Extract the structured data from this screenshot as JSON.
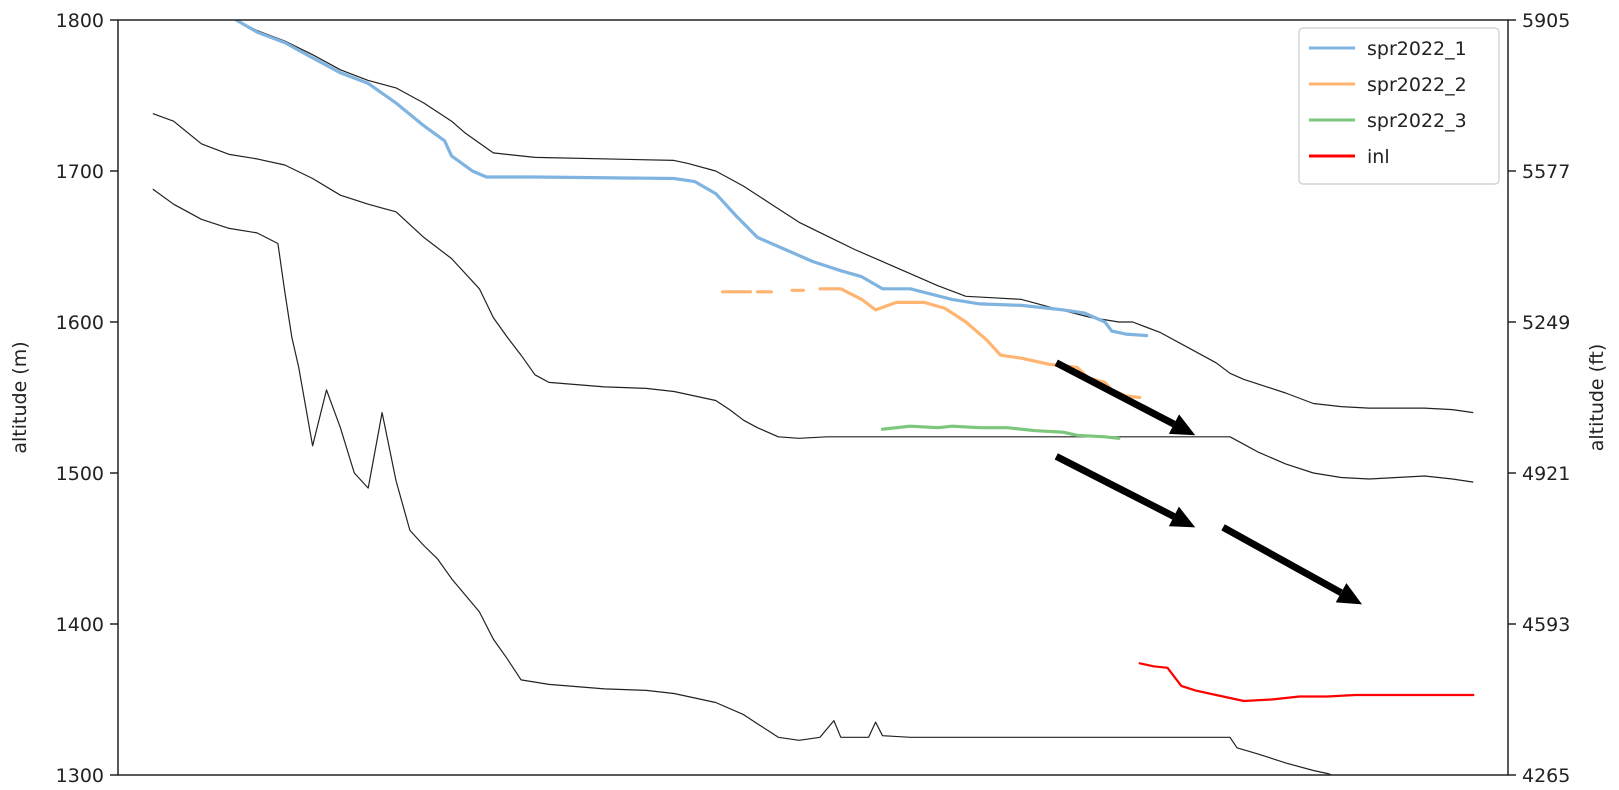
{
  "chart_data": {
    "type": "line",
    "title": "",
    "xlabel": "",
    "ylabel": "altitude (m)",
    "ylabel_right": "altitude (ft)",
    "ylim": [
      1300,
      1800
    ],
    "yticks": [
      1300,
      1400,
      1500,
      1600,
      1700,
      1800
    ],
    "ytick_labels": [
      "1300",
      "1400",
      "1500",
      "1600",
      "1700",
      "1800"
    ],
    "right_ylim": [
      4265,
      5905
    ],
    "right_ticks": [
      4265,
      4593,
      4921,
      5249,
      5577,
      5905
    ],
    "right_tick_labels": [
      "4265",
      "4593",
      "4921",
      "5249",
      "5577",
      "5905"
    ],
    "xlim": [
      0,
      100
    ],
    "x_ticks_shown": false,
    "grid": false,
    "legend_position": "top-right",
    "series": [
      {
        "name": "spr2022_1",
        "color": "#7fb3e0",
        "points": [
          [
            8.5,
            1800
          ],
          [
            10,
            1792
          ],
          [
            12,
            1785
          ],
          [
            14,
            1775
          ],
          [
            16,
            1765
          ],
          [
            18,
            1758
          ],
          [
            20,
            1745
          ],
          [
            22,
            1730
          ],
          [
            23.5,
            1720
          ],
          [
            24,
            1710
          ],
          [
            25.5,
            1700
          ],
          [
            26.5,
            1696
          ],
          [
            30,
            1696
          ],
          [
            40,
            1695
          ],
          [
            41.5,
            1693
          ],
          [
            43,
            1685
          ],
          [
            44.5,
            1670
          ],
          [
            46,
            1656
          ],
          [
            48,
            1648
          ],
          [
            50,
            1640
          ],
          [
            52,
            1634
          ],
          [
            53.5,
            1630
          ],
          [
            55,
            1622
          ],
          [
            57,
            1622
          ],
          [
            60,
            1615
          ],
          [
            62,
            1612
          ],
          [
            65,
            1611
          ],
          [
            68,
            1608
          ],
          [
            69.5,
            1606
          ],
          [
            71,
            1600
          ],
          [
            71.5,
            1594
          ],
          [
            72.5,
            1592
          ],
          [
            74,
            1591
          ]
        ]
      },
      {
        "name": "spr2022_2",
        "color": "#ffb472",
        "segments": [
          [
            [
              43.5,
              1620
            ],
            [
              45.5,
              1620
            ]
          ],
          [
            [
              46,
              1620
            ],
            [
              47,
              1620
            ]
          ],
          [
            [
              48.5,
              1621
            ],
            [
              49.3,
              1621
            ]
          ],
          [
            [
              50.5,
              1622
            ],
            [
              52,
              1622
            ],
            [
              53.5,
              1615
            ],
            [
              54.5,
              1608
            ],
            [
              56,
              1613
            ],
            [
              58,
              1613
            ],
            [
              59.5,
              1609
            ],
            [
              61,
              1600
            ],
            [
              62.5,
              1588
            ],
            [
              63.5,
              1578
            ],
            [
              65,
              1576
            ],
            [
              67,
              1572
            ],
            [
              69,
              1570
            ],
            [
              69.8,
              1563
            ],
            [
              71,
              1560
            ],
            [
              71.5,
              1555
            ],
            [
              72.5,
              1551
            ],
            [
              73.5,
              1550
            ]
          ]
        ]
      },
      {
        "name": "spr2022_3",
        "color": "#7bc77b",
        "points": [
          [
            55,
            1529
          ],
          [
            57,
            1531
          ],
          [
            59,
            1530
          ],
          [
            60,
            1531
          ],
          [
            62,
            1530
          ],
          [
            64,
            1530
          ],
          [
            66,
            1528
          ],
          [
            68,
            1527
          ],
          [
            69,
            1525
          ],
          [
            71,
            1524
          ],
          [
            72,
            1523
          ]
        ]
      },
      {
        "name": "inl",
        "color": "#ff0000",
        "points": [
          [
            73.5,
            1374
          ],
          [
            74.5,
            1372
          ],
          [
            75.5,
            1371
          ],
          [
            76.5,
            1359
          ],
          [
            77.5,
            1356
          ],
          [
            79,
            1353
          ],
          [
            81,
            1349
          ],
          [
            83,
            1350
          ],
          [
            85,
            1352
          ],
          [
            87,
            1352
          ],
          [
            89,
            1353
          ],
          [
            91,
            1353
          ],
          [
            93,
            1353
          ],
          [
            95,
            1353
          ],
          [
            97.5,
            1353
          ]
        ]
      }
    ],
    "reference_profiles": [
      {
        "color": "#222222",
        "points": [
          [
            8.5,
            1800
          ],
          [
            10,
            1793
          ],
          [
            12,
            1786
          ],
          [
            14,
            1777
          ],
          [
            16,
            1767
          ],
          [
            18,
            1760
          ],
          [
            20,
            1755
          ],
          [
            22,
            1745
          ],
          [
            24,
            1733
          ],
          [
            25,
            1725
          ],
          [
            27,
            1712
          ],
          [
            30,
            1709
          ],
          [
            40,
            1707
          ],
          [
            41,
            1705
          ],
          [
            43,
            1700
          ],
          [
            45,
            1690
          ],
          [
            47,
            1678
          ],
          [
            49,
            1666
          ],
          [
            51,
            1657
          ],
          [
            53,
            1648
          ],
          [
            55,
            1640
          ],
          [
            57,
            1632
          ],
          [
            59,
            1624
          ],
          [
            61,
            1617
          ],
          [
            63,
            1616
          ],
          [
            65,
            1615
          ],
          [
            67,
            1610
          ],
          [
            70,
            1603
          ],
          [
            72,
            1600
          ],
          [
            73,
            1600
          ],
          [
            75,
            1593
          ],
          [
            77,
            1583
          ],
          [
            79,
            1573
          ],
          [
            80,
            1566
          ],
          [
            81,
            1562
          ],
          [
            82,
            1559
          ],
          [
            84,
            1553
          ],
          [
            86,
            1546
          ],
          [
            88,
            1544
          ],
          [
            90,
            1543
          ],
          [
            92,
            1543
          ],
          [
            94,
            1543
          ],
          [
            96,
            1542
          ],
          [
            97.5,
            1540
          ]
        ]
      },
      {
        "color": "#222222",
        "points": [
          [
            2.5,
            1738
          ],
          [
            4,
            1733
          ],
          [
            6,
            1718
          ],
          [
            8,
            1711
          ],
          [
            10,
            1708
          ],
          [
            12,
            1704
          ],
          [
            14,
            1695
          ],
          [
            16,
            1684
          ],
          [
            18,
            1678
          ],
          [
            20,
            1673
          ],
          [
            22,
            1656
          ],
          [
            24,
            1642
          ],
          [
            26,
            1622
          ],
          [
            27,
            1603
          ],
          [
            28,
            1590
          ],
          [
            29,
            1578
          ],
          [
            30,
            1565
          ],
          [
            31,
            1560
          ],
          [
            35,
            1557
          ],
          [
            38,
            1556
          ],
          [
            40,
            1554
          ],
          [
            43,
            1548
          ],
          [
            44,
            1542
          ],
          [
            45,
            1535
          ],
          [
            46,
            1530
          ],
          [
            47.5,
            1524
          ],
          [
            49,
            1523
          ],
          [
            51,
            1524
          ],
          [
            54,
            1524
          ],
          [
            60,
            1524
          ],
          [
            70,
            1524
          ],
          [
            78,
            1524
          ],
          [
            80,
            1524
          ],
          [
            81,
            1519
          ],
          [
            82,
            1514
          ],
          [
            84,
            1506
          ],
          [
            86,
            1500
          ],
          [
            88,
            1497
          ],
          [
            90,
            1496
          ],
          [
            92,
            1497
          ],
          [
            94,
            1498
          ],
          [
            96,
            1496
          ],
          [
            97.5,
            1494
          ]
        ]
      },
      {
        "color": "#222222",
        "points": [
          [
            2.5,
            1688
          ],
          [
            4,
            1678
          ],
          [
            6,
            1668
          ],
          [
            8,
            1662
          ],
          [
            10,
            1659
          ],
          [
            11.5,
            1652
          ],
          [
            12,
            1620
          ],
          [
            12.5,
            1590
          ],
          [
            13,
            1570
          ],
          [
            14,
            1518
          ],
          [
            15,
            1555
          ],
          [
            16,
            1530
          ],
          [
            17,
            1500
          ],
          [
            18,
            1490
          ],
          [
            19,
            1540
          ],
          [
            20,
            1495
          ],
          [
            21,
            1462
          ],
          [
            22,
            1452
          ],
          [
            23,
            1443
          ],
          [
            24,
            1430
          ],
          [
            26,
            1408
          ],
          [
            27,
            1390
          ],
          [
            28,
            1377
          ],
          [
            29,
            1363
          ],
          [
            31,
            1360
          ],
          [
            35,
            1357
          ],
          [
            38,
            1356
          ],
          [
            40,
            1354
          ],
          [
            43,
            1348
          ],
          [
            45,
            1340
          ],
          [
            46,
            1334
          ],
          [
            47.5,
            1325
          ],
          [
            49,
            1323
          ],
          [
            50.5,
            1325
          ],
          [
            51.5,
            1336
          ],
          [
            52,
            1325
          ],
          [
            54,
            1325
          ],
          [
            54.5,
            1335
          ],
          [
            55,
            1326
          ],
          [
            57,
            1325
          ],
          [
            60,
            1325
          ],
          [
            70,
            1325
          ],
          [
            80,
            1325
          ],
          [
            80.5,
            1318
          ],
          [
            82,
            1314
          ],
          [
            84,
            1308
          ],
          [
            86,
            1303
          ],
          [
            87,
            1301
          ],
          [
            87.3,
            1300
          ]
        ]
      }
    ],
    "annotations": [
      {
        "type": "arrow",
        "color": "#000000",
        "from": [
          67.5,
          1573
        ],
        "to": [
          77.5,
          1525
        ]
      },
      {
        "type": "arrow",
        "color": "#000000",
        "from": [
          67.5,
          1511
        ],
        "to": [
          77.5,
          1464
        ]
      },
      {
        "type": "arrow",
        "color": "#000000",
        "from": [
          79.5,
          1464
        ],
        "to": [
          89.5,
          1413
        ]
      }
    ]
  }
}
